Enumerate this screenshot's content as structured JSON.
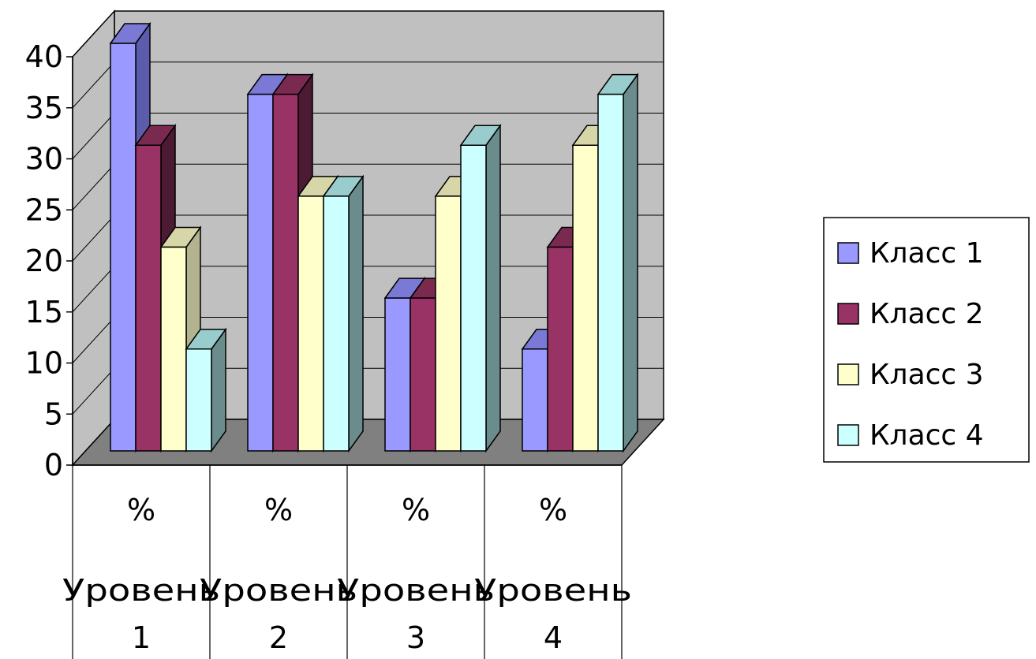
{
  "chart_data": {
    "type": "bar",
    "style": "3d-clustered",
    "categories": [
      {
        "top": "%",
        "line1": "Уровень",
        "line2": "1"
      },
      {
        "top": "%",
        "line1": "Уровень",
        "line2": "2"
      },
      {
        "top": "%",
        "line1": "Уровень",
        "line2": "3"
      },
      {
        "top": "%",
        "line1": "Уровень",
        "line2": "4"
      }
    ],
    "series": [
      {
        "name": "Класс 1",
        "values": [
          40,
          35,
          15,
          10
        ],
        "color": "#9999ff",
        "side": "#5c5cad",
        "top": "#7a7ad6"
      },
      {
        "name": "Класс 2",
        "values": [
          30,
          35,
          15,
          20
        ],
        "color": "#993366",
        "side": "#4d1a33",
        "top": "#7a294f"
      },
      {
        "name": "Класс 3",
        "values": [
          20,
          25,
          25,
          30
        ],
        "color": "#ffffcc",
        "side": "#b3b38f",
        "top": "#d6d6a8"
      },
      {
        "name": "Класс 4",
        "values": [
          10,
          25,
          30,
          35
        ],
        "color": "#ccffff",
        "side": "#6b8c8c",
        "top": "#99cccc"
      }
    ],
    "ylim": [
      0,
      40
    ],
    "yticks": [
      "0",
      "5",
      "10",
      "15",
      "20",
      "25",
      "30",
      "35",
      "40"
    ],
    "grid": true,
    "wall_color": "#c0c0c0",
    "floor_color": "#808080",
    "legend": "right"
  }
}
